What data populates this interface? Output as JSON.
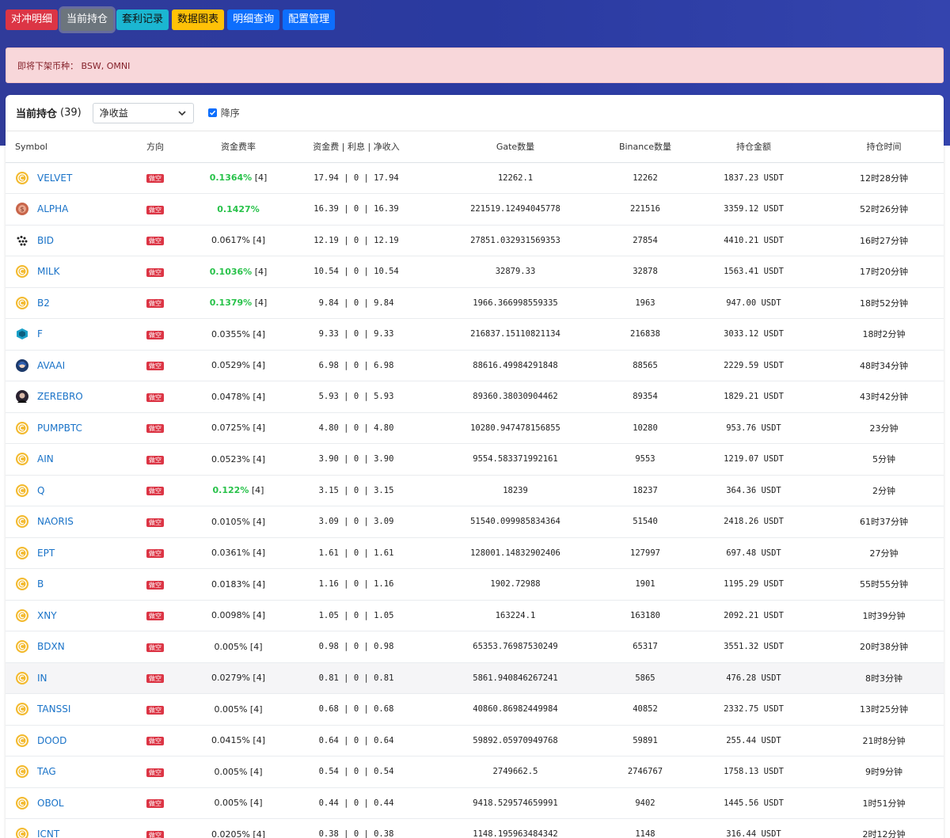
{
  "nav": [
    "对冲明细",
    "当前持仓",
    "套利记录",
    "数据图表",
    "明细查询",
    "配置管理"
  ],
  "alert": {
    "text": "即将下架币种： BSW, OMNI"
  },
  "card": {
    "title": "当前持仓",
    "count": "(39)",
    "sort_value": "净收益",
    "desc_label": "降序"
  },
  "columns": [
    "Symbol",
    "方向",
    "资金费率",
    "资金费 | 利息 | 净收入",
    "Gate数量",
    "Binance数量",
    "持仓金额",
    "持仓时间"
  ],
  "colors": {
    "short_badge": "#dc3545",
    "rate_green": "#28c24a",
    "symbol_link": "#1a73c8",
    "coin_default": "#f3ba2f"
  },
  "rows": [
    {
      "symbol": "VELVET",
      "icon": "coin-icon",
      "direction": "做空",
      "rate": "0.1364%",
      "rate_suffix": "[4]",
      "rate_green": true,
      "income": "17.94 | 0 | 17.94",
      "gate": "12262.1",
      "binance": "12262",
      "amount": "1837.23 USDT",
      "time": "12时28分钟"
    },
    {
      "symbol": "ALPHA",
      "icon": "alpha-icon",
      "direction": "做空",
      "rate": "0.1427%",
      "rate_suffix": "",
      "rate_green": true,
      "income": "16.39 | 0 | 16.39",
      "gate": "221519.12494045778",
      "binance": "221516",
      "amount": "3359.12 USDT",
      "time": "52时26分钟"
    },
    {
      "symbol": "BID",
      "icon": "bid-icon",
      "direction": "做空",
      "rate": "0.0617%",
      "rate_suffix": "[4]",
      "rate_green": false,
      "income": "12.19 | 0 | 12.19",
      "gate": "27851.032931569353",
      "binance": "27854",
      "amount": "4410.21 USDT",
      "time": "16时27分钟"
    },
    {
      "symbol": "MILK",
      "icon": "coin-icon",
      "direction": "做空",
      "rate": "0.1036%",
      "rate_suffix": "[4]",
      "rate_green": true,
      "income": "10.54 | 0 | 10.54",
      "gate": "32879.33",
      "binance": "32878",
      "amount": "1563.41 USDT",
      "time": "17时20分钟"
    },
    {
      "symbol": "B2",
      "icon": "coin-icon",
      "direction": "做空",
      "rate": "0.1379%",
      "rate_suffix": "[4]",
      "rate_green": true,
      "income": "9.84 | 0 | 9.84",
      "gate": "1966.366998559335",
      "binance": "1963",
      "amount": "947.00 USDT",
      "time": "18时52分钟"
    },
    {
      "symbol": "F",
      "icon": "cube-icon",
      "direction": "做空",
      "rate": "0.0355%",
      "rate_suffix": "[4]",
      "rate_green": false,
      "income": "9.33 | 0 | 9.33",
      "gate": "216837.15110821134",
      "binance": "216838",
      "amount": "3033.12 USDT",
      "time": "18时2分钟"
    },
    {
      "symbol": "AVAAI",
      "icon": "avatar-icon",
      "direction": "做空",
      "rate": "0.0529%",
      "rate_suffix": "[4]",
      "rate_green": false,
      "income": "6.98 | 0 | 6.98",
      "gate": "88616.49984291848",
      "binance": "88565",
      "amount": "2229.59 USDT",
      "time": "48时34分钟"
    },
    {
      "symbol": "ZEREBRO",
      "icon": "avatar-dark-icon",
      "direction": "做空",
      "rate": "0.0478%",
      "rate_suffix": "[4]",
      "rate_green": false,
      "income": "5.93 | 0 | 5.93",
      "gate": "89360.38030904462",
      "binance": "89354",
      "amount": "1829.21 USDT",
      "time": "43时42分钟"
    },
    {
      "symbol": "PUMPBTC",
      "icon": "coin-icon",
      "direction": "做空",
      "rate": "0.0725%",
      "rate_suffix": "[4]",
      "rate_green": false,
      "income": "4.80 | 0 | 4.80",
      "gate": "10280.947478156855",
      "binance": "10280",
      "amount": "953.76 USDT",
      "time": "23分钟"
    },
    {
      "symbol": "AIN",
      "icon": "coin-icon",
      "direction": "做空",
      "rate": "0.0523%",
      "rate_suffix": "[4]",
      "rate_green": false,
      "income": "3.90 | 0 | 3.90",
      "gate": "9554.583371992161",
      "binance": "9553",
      "amount": "1219.07 USDT",
      "time": "5分钟"
    },
    {
      "symbol": "Q",
      "icon": "coin-icon",
      "direction": "做空",
      "rate": "0.122%",
      "rate_suffix": "[4]",
      "rate_green": true,
      "income": "3.15 | 0 | 3.15",
      "gate": "18239",
      "binance": "18237",
      "amount": "364.36 USDT",
      "time": "2分钟"
    },
    {
      "symbol": "NAORIS",
      "icon": "coin-icon",
      "direction": "做空",
      "rate": "0.0105%",
      "rate_suffix": "[4]",
      "rate_green": false,
      "income": "3.09 | 0 | 3.09",
      "gate": "51540.099985834364",
      "binance": "51540",
      "amount": "2418.26 USDT",
      "time": "61时37分钟"
    },
    {
      "symbol": "EPT",
      "icon": "coin-icon",
      "direction": "做空",
      "rate": "0.0361%",
      "rate_suffix": "[4]",
      "rate_green": false,
      "income": "1.61 | 0 | 1.61",
      "gate": "128001.14832902406",
      "binance": "127997",
      "amount": "697.48 USDT",
      "time": "27分钟"
    },
    {
      "symbol": "B",
      "icon": "coin-icon",
      "direction": "做空",
      "rate": "0.0183%",
      "rate_suffix": "[4]",
      "rate_green": false,
      "income": "1.16 | 0 | 1.16",
      "gate": "1902.72988",
      "binance": "1901",
      "amount": "1195.29 USDT",
      "time": "55时55分钟"
    },
    {
      "symbol": "XNY",
      "icon": "coin-icon",
      "direction": "做空",
      "rate": "0.0098%",
      "rate_suffix": "[4]",
      "rate_green": false,
      "income": "1.05 | 0 | 1.05",
      "gate": "163224.1",
      "binance": "163180",
      "amount": "2092.21 USDT",
      "time": "1时39分钟"
    },
    {
      "symbol": "BDXN",
      "icon": "coin-icon",
      "direction": "做空",
      "rate": "0.005%",
      "rate_suffix": "[4]",
      "rate_green": false,
      "income": "0.98 | 0 | 0.98",
      "gate": "65353.76987530249",
      "binance": "65317",
      "amount": "3551.32 USDT",
      "time": "20时38分钟"
    },
    {
      "symbol": "IN",
      "icon": "coin-icon",
      "direction": "做空",
      "rate": "0.0279%",
      "rate_suffix": "[4]",
      "rate_green": false,
      "income": "0.81 | 0 | 0.81",
      "gate": "5861.940846267241",
      "binance": "5865",
      "amount": "476.28 USDT",
      "time": "8时3分钟",
      "highlight": true
    },
    {
      "symbol": "TANSSI",
      "icon": "coin-icon",
      "direction": "做空",
      "rate": "0.005%",
      "rate_suffix": "[4]",
      "rate_green": false,
      "income": "0.68 | 0 | 0.68",
      "gate": "40860.86982449984",
      "binance": "40852",
      "amount": "2332.75 USDT",
      "time": "13时25分钟"
    },
    {
      "symbol": "DOOD",
      "icon": "coin-icon",
      "direction": "做空",
      "rate": "0.0415%",
      "rate_suffix": "[4]",
      "rate_green": false,
      "income": "0.64 | 0 | 0.64",
      "gate": "59892.05970949768",
      "binance": "59891",
      "amount": "255.44 USDT",
      "time": "21时8分钟"
    },
    {
      "symbol": "TAG",
      "icon": "coin-icon",
      "direction": "做空",
      "rate": "0.005%",
      "rate_suffix": "[4]",
      "rate_green": false,
      "income": "0.54 | 0 | 0.54",
      "gate": "2749662.5",
      "binance": "2746767",
      "amount": "1758.13 USDT",
      "time": "9时9分钟"
    },
    {
      "symbol": "OBOL",
      "icon": "coin-icon",
      "direction": "做空",
      "rate": "0.005%",
      "rate_suffix": "[4]",
      "rate_green": false,
      "income": "0.44 | 0 | 0.44",
      "gate": "9418.529574659991",
      "binance": "9402",
      "amount": "1445.56 USDT",
      "time": "1时51分钟"
    },
    {
      "symbol": "ICNT",
      "icon": "coin-icon",
      "direction": "做空",
      "rate": "0.0205%",
      "rate_suffix": "[4]",
      "rate_green": false,
      "income": "0.38 | 0 | 0.38",
      "gate": "1148.195963484342",
      "binance": "1148",
      "amount": "316.44 USDT",
      "time": "2时12分钟"
    }
  ]
}
